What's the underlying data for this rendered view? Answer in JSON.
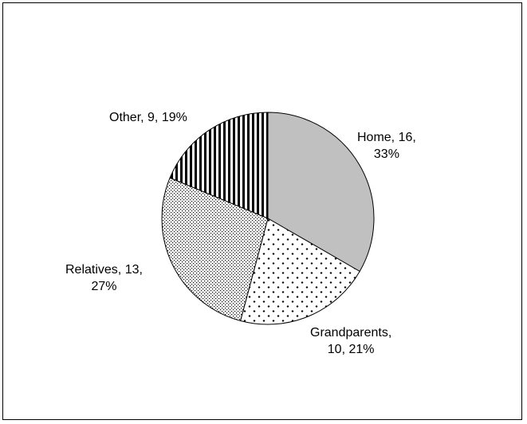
{
  "chart_data": {
    "type": "pie",
    "title": "",
    "slices": [
      {
        "label": "Home",
        "value": 16,
        "percent": "33%",
        "text_line1": "Home, 16,",
        "text_line2": "33%",
        "pattern": "solid-gray"
      },
      {
        "label": "Grandparents",
        "value": 10,
        "percent": "21%",
        "text_line1": "Grandparents,",
        "text_line2": "10, 21%",
        "pattern": "diamond-dots"
      },
      {
        "label": "Relatives",
        "value": 13,
        "percent": "27%",
        "text_line1": "Relatives, 13,",
        "text_line2": "27%",
        "pattern": "fine-dots"
      },
      {
        "label": "Other",
        "value": 9,
        "percent": "19%",
        "text_line1": "Other, 9, 19%",
        "text_line2": "",
        "pattern": "vertical-stripes"
      }
    ],
    "start_angle": "12 o'clock",
    "direction": "clockwise",
    "legend": "none"
  }
}
